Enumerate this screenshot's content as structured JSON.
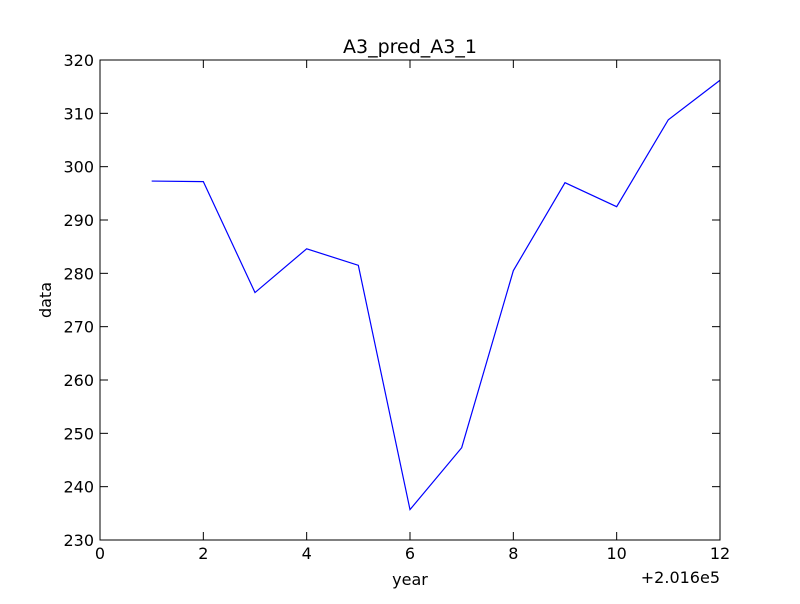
{
  "chart_data": {
    "type": "line",
    "title": "A3_pred_A3_1",
    "xlabel": "year",
    "ylabel": "data",
    "x_offset_label": "+2.016e5",
    "xlim": [
      0,
      12
    ],
    "ylim": [
      230,
      320
    ],
    "x_ticks": [
      "0",
      "2",
      "4",
      "6",
      "8",
      "10",
      "12"
    ],
    "y_ticks": [
      "230",
      "240",
      "250",
      "260",
      "270",
      "280",
      "290",
      "300",
      "310",
      "320"
    ],
    "grid": false,
    "legend": "none",
    "series": [
      {
        "color": "#0000ff",
        "x": [
          1,
          2,
          3,
          4,
          5,
          6,
          7,
          8,
          9,
          10,
          11,
          12
        ],
        "y": [
          297.3,
          297.2,
          276.4,
          284.6,
          281.5,
          235.7,
          247.3,
          280.5,
          297.0,
          292.5,
          308.8,
          316.2
        ]
      }
    ]
  }
}
